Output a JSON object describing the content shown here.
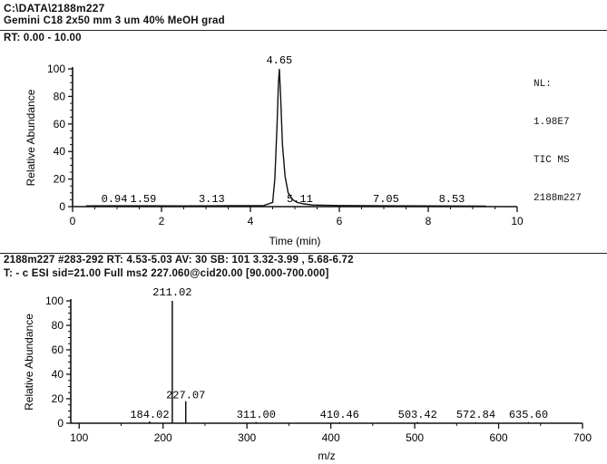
{
  "header": {
    "file_path": "C:\\DATA\\2188m227",
    "method": "Gemini C18 2x50 mm 3 um 40% MeOH grad",
    "rt_range": "RT: 0.00 - 10.00"
  },
  "spectrum_header": {
    "scan_info": "2188m227 #283-292  RT: 4.53-5.03  AV: 30  SB: 101  3.32-3.99 , 5.68-6.72",
    "filter": "T: - c ESI sid=21.00  Full ms2 227.060@cid20.00 [90.000-700.000]"
  },
  "info_box": {
    "nl_label": "NL:",
    "nl_value": "1.98E7",
    "trace": "TIC MS",
    "sample": "2188m227"
  },
  "chart_data": [
    {
      "type": "line",
      "title": "",
      "xlabel": "Time (min)",
      "ylabel": "Relative Abundance",
      "xlim": [
        0,
        10
      ],
      "ylim": [
        0,
        100
      ],
      "x_ticks": [
        0,
        2,
        4,
        6,
        8,
        10
      ],
      "y_ticks": [
        0,
        20,
        40,
        60,
        80,
        100
      ],
      "grid": false,
      "series": [
        {
          "x": [
            0.3,
            0.9,
            1.6,
            2.5,
            3.2,
            4.3,
            4.5,
            4.55,
            4.6,
            4.63,
            4.65,
            4.68,
            4.72,
            4.78,
            4.85,
            4.95,
            5.05,
            5.2,
            5.4,
            6.0,
            7.0,
            8.0,
            9.3
          ],
          "y": [
            0.5,
            0.6,
            0.6,
            0.5,
            0.6,
            0.8,
            3,
            20,
            60,
            90,
            100,
            80,
            45,
            22,
            10,
            5,
            3,
            2,
            1.2,
            0.8,
            0.6,
            0.5,
            0.4
          ]
        }
      ],
      "peak_labels": [
        {
          "x": 0.94,
          "y": 0.6,
          "label": "0.94"
        },
        {
          "x": 1.59,
          "y": 0.6,
          "label": "1.59"
        },
        {
          "x": 3.13,
          "y": 0.6,
          "label": "3.13"
        },
        {
          "x": 4.65,
          "y": 100,
          "label": "4.65"
        },
        {
          "x": 5.11,
          "y": 2.5,
          "label": "5.11"
        },
        {
          "x": 7.05,
          "y": 0.6,
          "label": "7.05"
        },
        {
          "x": 8.53,
          "y": 0.5,
          "label": "8.53"
        }
      ]
    },
    {
      "type": "bar",
      "title": "",
      "xlabel": "m/z",
      "ylabel": "Relative Abundance",
      "xlim": [
        90,
        700
      ],
      "ylim": [
        0,
        100
      ],
      "x_ticks": [
        100,
        200,
        300,
        400,
        500,
        600,
        700
      ],
      "y_ticks": [
        0,
        20,
        40,
        60,
        80,
        100
      ],
      "grid": false,
      "peaks": [
        {
          "mz": 184.02,
          "intensity": 1.5,
          "label": "184.02"
        },
        {
          "mz": 211.02,
          "intensity": 100,
          "label": "211.02"
        },
        {
          "mz": 227.07,
          "intensity": 18,
          "label": "227.07"
        },
        {
          "mz": 311.0,
          "intensity": 1,
          "label": "311.00"
        },
        {
          "mz": 410.46,
          "intensity": 0.8,
          "label": "410.46"
        },
        {
          "mz": 503.42,
          "intensity": 1,
          "label": "503.42"
        },
        {
          "mz": 572.84,
          "intensity": 0.8,
          "label": "572.84"
        },
        {
          "mz": 635.6,
          "intensity": 1,
          "label": "635.60"
        }
      ]
    }
  ]
}
